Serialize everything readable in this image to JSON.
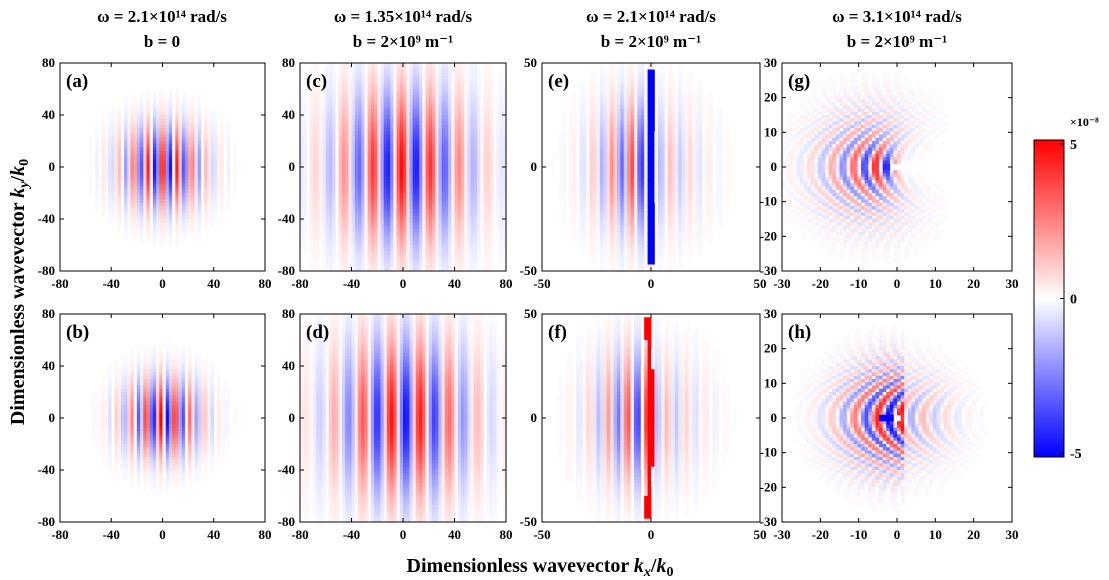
{
  "figure": {
    "shared_xlabel": "Dimensionless wavevector kx/k0",
    "shared_ylabel": "Dimensionless wavevector ky/k0"
  },
  "column_titles": [
    {
      "omega": "ω = 2.1×10¹⁴ rad/s",
      "b": "b = 0"
    },
    {
      "omega": "ω = 1.35×10¹⁴ rad/s",
      "b": "b = 2×10⁹ m⁻¹"
    },
    {
      "omega": "ω = 2.1×10¹⁴ rad/s",
      "b": "b = 2×10⁹ m⁻¹"
    },
    {
      "omega": "ω = 3.1×10¹⁴ rad/s",
      "b": "b = 2×10⁹ m⁻¹"
    }
  ],
  "colorbar": {
    "exponent_label": "×10⁻⁸",
    "ticks": [
      "5",
      "0",
      "-5"
    ],
    "range": [
      -5,
      5
    ],
    "colors": {
      "max": "#ff0000",
      "mid": "#ffffff",
      "min": "#0000ff"
    }
  },
  "chart_data": [
    {
      "type": "heatmap",
      "label": "(a)",
      "x_range": [
        -80,
        80
      ],
      "y_range": [
        -80,
        80
      ],
      "xticks": [
        -80,
        -40,
        0,
        40,
        80
      ],
      "yticks": [
        80,
        40,
        0,
        -40,
        -80
      ],
      "pattern": "vertical stripes, circular envelope centered at origin"
    },
    {
      "type": "heatmap",
      "label": "(b)",
      "x_range": [
        -80,
        80
      ],
      "y_range": [
        -80,
        80
      ],
      "xticks": [
        -80,
        -40,
        0,
        40,
        80
      ],
      "yticks": [
        80,
        40,
        0,
        -40,
        -80
      ],
      "pattern": "vertical stripes, circular envelope centered at origin"
    },
    {
      "type": "heatmap",
      "label": "(c)",
      "x_range": [
        -80,
        80
      ],
      "y_range": [
        -80,
        80
      ],
      "xticks": [
        -80,
        -40,
        0,
        40,
        80
      ],
      "yticks": [
        80,
        40,
        0,
        -40,
        -80
      ],
      "pattern": "vertical stripes, wide elliptical envelope"
    },
    {
      "type": "heatmap",
      "label": "(d)",
      "x_range": [
        -80,
        80
      ],
      "y_range": [
        -80,
        80
      ],
      "xticks": [
        -80,
        -40,
        0,
        40,
        80
      ],
      "yticks": [
        80,
        40,
        0,
        -40,
        -80
      ],
      "pattern": "vertical stripes, wide elliptical envelope"
    },
    {
      "type": "heatmap",
      "label": "(e)",
      "x_range": [
        -50,
        50
      ],
      "y_range": [
        -50,
        50
      ],
      "xticks": [
        -50,
        0,
        50
      ],
      "yticks": [
        50,
        0,
        -50
      ],
      "pattern": "vertical stripes for kx<0, blue vertical line at kx=0"
    },
    {
      "type": "heatmap",
      "label": "(f)",
      "x_range": [
        -50,
        50
      ],
      "y_range": [
        -50,
        50
      ],
      "xticks": [
        -50,
        0,
        50
      ],
      "yticks": [
        50,
        0,
        -50
      ],
      "pattern": "vertical stripes for kx<0, red vertical line at kx=0"
    },
    {
      "type": "heatmap",
      "label": "(g)",
      "x_range": [
        -30,
        30
      ],
      "y_range": [
        -30,
        30
      ],
      "xticks": [
        -30,
        -20,
        -10,
        0,
        10,
        20,
        30
      ],
      "yticks": [
        30,
        20,
        10,
        0,
        -10,
        -20,
        -30
      ],
      "pattern": "nested arcs opening to -kx, vertex near kx=0"
    },
    {
      "type": "heatmap",
      "label": "(h)",
      "x_range": [
        -30,
        30
      ],
      "y_range": [
        -30,
        30
      ],
      "xticks": [
        -30,
        -20,
        -10,
        0,
        10,
        20,
        30
      ],
      "yticks": [
        30,
        20,
        10,
        0,
        -10,
        -20,
        -30
      ],
      "pattern": "nested arcs opening to -kx, vertex near kx=0"
    }
  ]
}
